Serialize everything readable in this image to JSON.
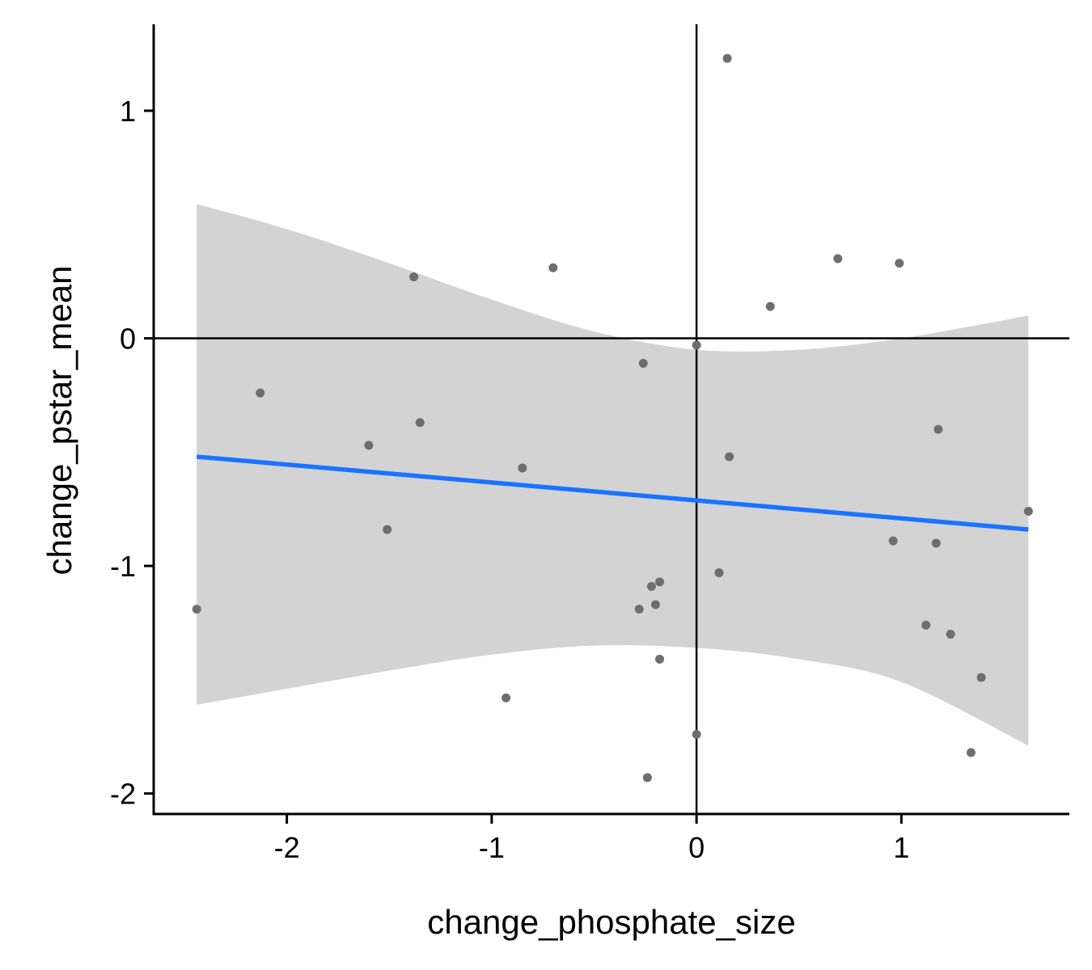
{
  "chart_data": {
    "type": "scatter",
    "title": "",
    "xlabel": "change_phosphate_size",
    "ylabel": "change_pstar_mean",
    "xlim": [
      -2.65,
      1.82
    ],
    "ylim": [
      -2.09,
      1.38
    ],
    "x_ticks": [
      -2,
      -1,
      0,
      1
    ],
    "y_ticks": [
      -2,
      -1,
      0,
      1
    ],
    "x_tick_labels": [
      "-2",
      "-1",
      "0",
      "1"
    ],
    "y_tick_labels": [
      "-2",
      "-1",
      "0",
      "1"
    ],
    "reference_lines": {
      "x": 0,
      "y": 0
    },
    "grid": false,
    "legend": "none",
    "colors": {
      "points": "#6e6e6e",
      "fit_line": "#1a73ff",
      "confidence_band": "#d3d3d3",
      "axes": "#000000"
    },
    "points": [
      {
        "x": 0.15,
        "y": 1.23
      },
      {
        "x": -1.38,
        "y": 0.27
      },
      {
        "x": -0.7,
        "y": 0.31
      },
      {
        "x": 0.69,
        "y": 0.35
      },
      {
        "x": 0.99,
        "y": 0.33
      },
      {
        "x": 0.36,
        "y": 0.14
      },
      {
        "x": 0.0,
        "y": -0.03
      },
      {
        "x": -0.26,
        "y": -0.11
      },
      {
        "x": -2.13,
        "y": -0.24
      },
      {
        "x": -1.35,
        "y": -0.37
      },
      {
        "x": -1.6,
        "y": -0.47
      },
      {
        "x": -0.85,
        "y": -0.57
      },
      {
        "x": 0.16,
        "y": -0.52
      },
      {
        "x": 1.18,
        "y": -0.4
      },
      {
        "x": 1.62,
        "y": -0.76
      },
      {
        "x": -1.51,
        "y": -0.84
      },
      {
        "x": 0.96,
        "y": -0.89
      },
      {
        "x": 1.17,
        "y": -0.9
      },
      {
        "x": 0.11,
        "y": -1.03
      },
      {
        "x": -0.22,
        "y": -1.09
      },
      {
        "x": -0.18,
        "y": -1.07
      },
      {
        "x": -0.28,
        "y": -1.19
      },
      {
        "x": -0.2,
        "y": -1.17
      },
      {
        "x": -2.44,
        "y": -1.19
      },
      {
        "x": 1.12,
        "y": -1.26
      },
      {
        "x": 1.24,
        "y": -1.3
      },
      {
        "x": -0.18,
        "y": -1.41
      },
      {
        "x": 1.39,
        "y": -1.49
      },
      {
        "x": -0.93,
        "y": -1.58
      },
      {
        "x": 0.0,
        "y": -1.74
      },
      {
        "x": 1.34,
        "y": -1.82
      },
      {
        "x": -0.24,
        "y": -1.93
      }
    ],
    "fit": {
      "x": [
        -2.44,
        1.62
      ],
      "y": [
        -0.52,
        -0.84
      ]
    },
    "confidence_band": {
      "x": [
        -2.44,
        -2.0,
        -1.5,
        -1.0,
        -0.5,
        0.0,
        0.5,
        1.0,
        1.62
      ],
      "upper": [
        0.59,
        0.48,
        0.33,
        0.17,
        0.03,
        -0.05,
        -0.05,
        0.0,
        0.1
      ],
      "lower": [
        -1.61,
        -1.54,
        -1.46,
        -1.39,
        -1.35,
        -1.36,
        -1.41,
        -1.51,
        -1.79
      ]
    }
  }
}
